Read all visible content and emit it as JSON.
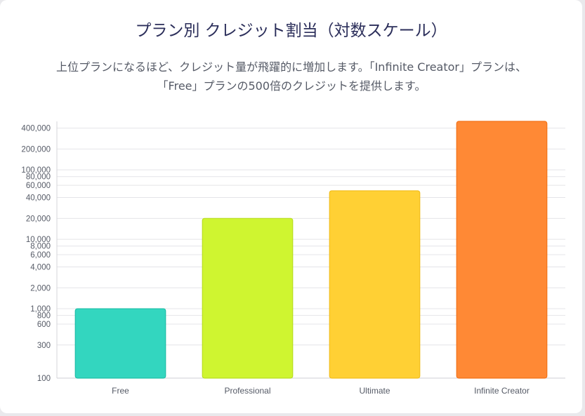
{
  "title": "プラン別 クレジット割当（対数スケール）",
  "subtitle_line1": "上位プランになるほど、クレジット量が飛躍的に増加します。「Infinite Creator」プランは、",
  "subtitle_line2": "「Free」プランの500倍のクレジットを提供します。",
  "chart_data": {
    "type": "bar",
    "scale": "log",
    "categories": [
      "Free",
      "Professional",
      "Ultimate",
      "Infinite Creator"
    ],
    "values": [
      1000,
      20000,
      50000,
      500000
    ],
    "ylim": [
      100,
      500000
    ],
    "yticks": [
      100,
      300,
      600,
      800,
      1000,
      2000,
      4000,
      6000,
      8000,
      10000,
      20000,
      40000,
      60000,
      80000,
      100000,
      200000,
      400000
    ],
    "ytick_labels": [
      "100",
      "300",
      "600",
      "800",
      "1,000",
      "2,000",
      "4,000",
      "6,000",
      "8,000",
      "10,000",
      "20,000",
      "40,000",
      "60,000",
      "80,000",
      "100,000",
      "200,000",
      "400,000"
    ],
    "grid": true,
    "legend": "none",
    "colors": [
      "#33d6bf",
      "#cff530",
      "#ffd034",
      "#ff8935"
    ],
    "borders": [
      "#1fbfa8",
      "#b9de20",
      "#f2bd1c",
      "#f27218"
    ]
  }
}
